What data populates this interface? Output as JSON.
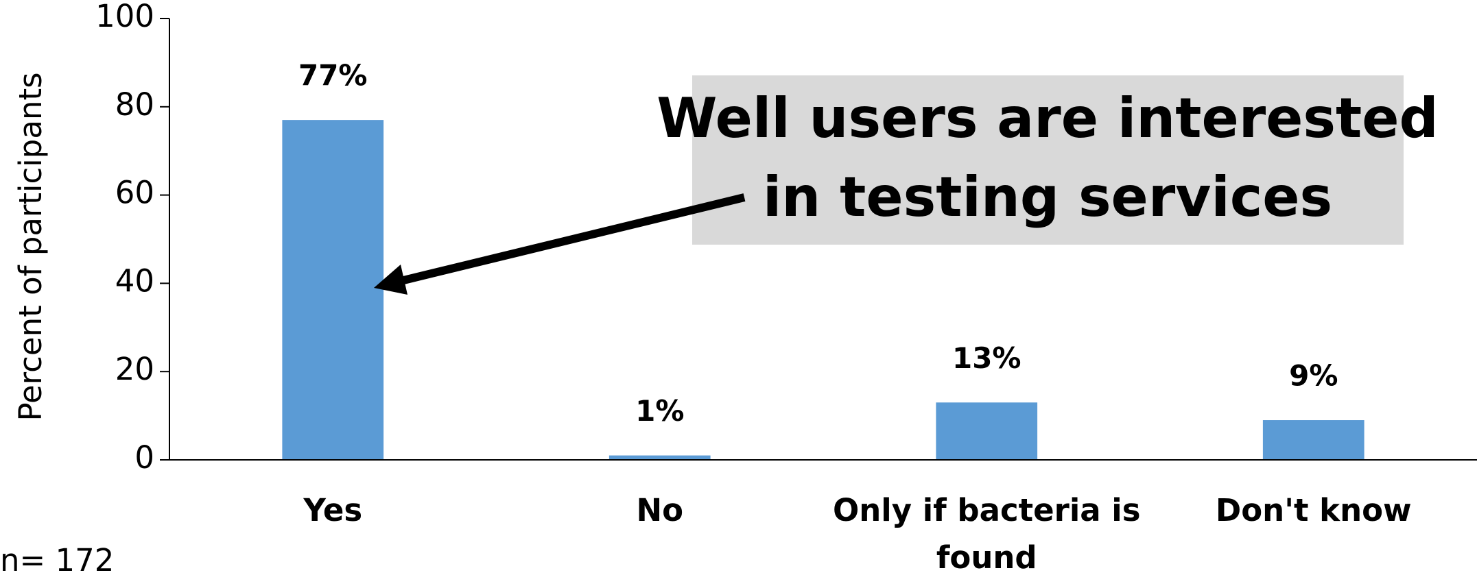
{
  "chart_data": {
    "type": "bar",
    "categories": [
      "Yes",
      "No",
      "Only if bacteria is found",
      "Don't know"
    ],
    "values": [
      77,
      1,
      13,
      9
    ],
    "value_labels": [
      "77%",
      "1%",
      "13%",
      "9%"
    ],
    "color": "#5b9bd5",
    "ylabel": "Percent of participants",
    "ylim": [
      0,
      100
    ],
    "yticks": [
      0,
      20,
      40,
      60,
      80,
      100
    ],
    "annotation": [
      "Well users are interested",
      "in testing services"
    ],
    "note": "n= 172"
  }
}
